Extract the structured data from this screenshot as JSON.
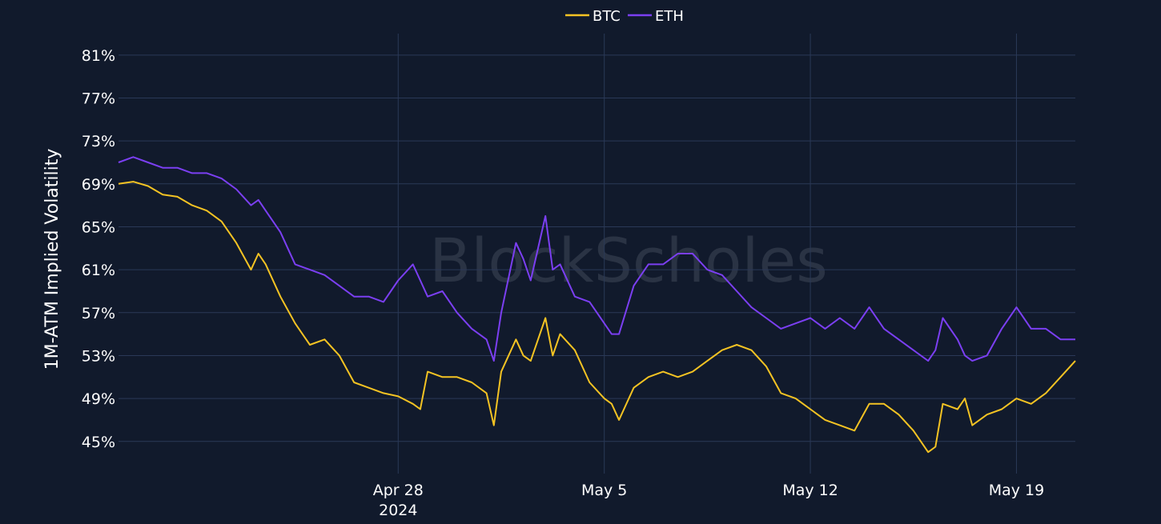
{
  "colors": {
    "background": "#111a2c",
    "grid": "#2a3957",
    "btc": "#f4c323",
    "eth": "#7b3ff2",
    "watermark": "#2a3344"
  },
  "watermark": "BlockScholes",
  "chart_data": {
    "type": "line",
    "title": "",
    "ylabel": "1M-ATM Implied Volatility",
    "xlabel": "",
    "ylim": [
      42,
      83
    ],
    "y_ticks": [
      45,
      49,
      53,
      57,
      61,
      65,
      69,
      73,
      77,
      81
    ],
    "y_tick_labels": [
      "45%",
      "49%",
      "53%",
      "57%",
      "61%",
      "65%",
      "69%",
      "73%",
      "77%",
      "81%"
    ],
    "xlim": [
      "2024-04-18 12:00",
      "2024-05-21 00:00"
    ],
    "x_ticks": [
      "2024-04-28",
      "2024-05-05",
      "2024-05-12",
      "2024-05-19"
    ],
    "x_tick_labels": [
      "Apr 28",
      "May 5",
      "May 12",
      "May 19"
    ],
    "x_year_label": "2024",
    "grid": true,
    "legend": "top-center",
    "series": [
      {
        "name": "BTC",
        "color": "#f4c323",
        "points": [
          [
            "2024-04-18 12:00",
            69.0
          ],
          [
            "2024-04-19 00:00",
            69.2
          ],
          [
            "2024-04-19 12:00",
            68.8
          ],
          [
            "2024-04-20 00:00",
            68.0
          ],
          [
            "2024-04-20 12:00",
            67.8
          ],
          [
            "2024-04-21 00:00",
            67.0
          ],
          [
            "2024-04-21 12:00",
            66.5
          ],
          [
            "2024-04-22 00:00",
            65.5
          ],
          [
            "2024-04-22 12:00",
            63.5
          ],
          [
            "2024-04-23 00:00",
            61.0
          ],
          [
            "2024-04-23 06:00",
            62.5
          ],
          [
            "2024-04-23 12:00",
            61.5
          ],
          [
            "2024-04-24 00:00",
            58.5
          ],
          [
            "2024-04-24 12:00",
            56.0
          ],
          [
            "2024-04-25 00:00",
            54.0
          ],
          [
            "2024-04-25 12:00",
            54.5
          ],
          [
            "2024-04-26 00:00",
            53.0
          ],
          [
            "2024-04-26 12:00",
            50.5
          ],
          [
            "2024-04-27 00:00",
            50.0
          ],
          [
            "2024-04-27 12:00",
            49.5
          ],
          [
            "2024-04-28 00:00",
            49.2
          ],
          [
            "2024-04-28 12:00",
            48.5
          ],
          [
            "2024-04-28 18:00",
            48.0
          ],
          [
            "2024-04-29 00:00",
            51.5
          ],
          [
            "2024-04-29 12:00",
            51.0
          ],
          [
            "2024-04-30 00:00",
            51.0
          ],
          [
            "2024-04-30 12:00",
            50.5
          ],
          [
            "2024-05-01 00:00",
            49.5
          ],
          [
            "2024-05-01 06:00",
            46.5
          ],
          [
            "2024-05-01 12:00",
            51.5
          ],
          [
            "2024-05-02 00:00",
            54.5
          ],
          [
            "2024-05-02 06:00",
            53.0
          ],
          [
            "2024-05-02 12:00",
            52.5
          ],
          [
            "2024-05-03 00:00",
            56.5
          ],
          [
            "2024-05-03 06:00",
            53.0
          ],
          [
            "2024-05-03 12:00",
            55.0
          ],
          [
            "2024-05-04 00:00",
            53.5
          ],
          [
            "2024-05-04 12:00",
            50.5
          ],
          [
            "2024-05-05 00:00",
            49.0
          ],
          [
            "2024-05-05 06:00",
            48.5
          ],
          [
            "2024-05-05 12:00",
            47.0
          ],
          [
            "2024-05-06 00:00",
            50.0
          ],
          [
            "2024-05-06 12:00",
            51.0
          ],
          [
            "2024-05-07 00:00",
            51.5
          ],
          [
            "2024-05-07 12:00",
            51.0
          ],
          [
            "2024-05-08 00:00",
            51.5
          ],
          [
            "2024-05-08 12:00",
            52.5
          ],
          [
            "2024-05-09 00:00",
            53.5
          ],
          [
            "2024-05-09 12:00",
            54.0
          ],
          [
            "2024-05-10 00:00",
            53.5
          ],
          [
            "2024-05-10 12:00",
            52.0
          ],
          [
            "2024-05-11 00:00",
            49.5
          ],
          [
            "2024-05-11 12:00",
            49.0
          ],
          [
            "2024-05-12 00:00",
            48.0
          ],
          [
            "2024-05-12 12:00",
            47.0
          ],
          [
            "2024-05-13 00:00",
            46.5
          ],
          [
            "2024-05-13 12:00",
            46.0
          ],
          [
            "2024-05-14 00:00",
            48.5
          ],
          [
            "2024-05-14 12:00",
            48.5
          ],
          [
            "2024-05-15 00:00",
            47.5
          ],
          [
            "2024-05-15 12:00",
            46.0
          ],
          [
            "2024-05-16 00:00",
            44.0
          ],
          [
            "2024-05-16 06:00",
            44.5
          ],
          [
            "2024-05-16 12:00",
            48.5
          ],
          [
            "2024-05-17 00:00",
            48.0
          ],
          [
            "2024-05-17 06:00",
            49.0
          ],
          [
            "2024-05-17 12:00",
            46.5
          ],
          [
            "2024-05-18 00:00",
            47.5
          ],
          [
            "2024-05-18 12:00",
            48.0
          ],
          [
            "2024-05-19 00:00",
            49.0
          ],
          [
            "2024-05-19 12:00",
            48.5
          ],
          [
            "2024-05-20 00:00",
            49.5
          ],
          [
            "2024-05-20 12:00",
            51.0
          ],
          [
            "2024-05-21 00:00",
            52.5
          ]
        ]
      },
      {
        "name": "ETH",
        "color": "#7b3ff2",
        "points": [
          [
            "2024-04-18 12:00",
            71.0
          ],
          [
            "2024-04-19 00:00",
            71.5
          ],
          [
            "2024-04-19 12:00",
            71.0
          ],
          [
            "2024-04-20 00:00",
            70.5
          ],
          [
            "2024-04-20 12:00",
            70.5
          ],
          [
            "2024-04-21 00:00",
            70.0
          ],
          [
            "2024-04-21 12:00",
            70.0
          ],
          [
            "2024-04-22 00:00",
            69.5
          ],
          [
            "2024-04-22 12:00",
            68.5
          ],
          [
            "2024-04-23 00:00",
            67.0
          ],
          [
            "2024-04-23 06:00",
            67.5
          ],
          [
            "2024-04-23 12:00",
            66.5
          ],
          [
            "2024-04-24 00:00",
            64.5
          ],
          [
            "2024-04-24 12:00",
            61.5
          ],
          [
            "2024-04-25 00:00",
            61.0
          ],
          [
            "2024-04-25 12:00",
            60.5
          ],
          [
            "2024-04-26 00:00",
            59.5
          ],
          [
            "2024-04-26 12:00",
            58.5
          ],
          [
            "2024-04-27 00:00",
            58.5
          ],
          [
            "2024-04-27 12:00",
            58.0
          ],
          [
            "2024-04-28 00:00",
            60.0
          ],
          [
            "2024-04-28 12:00",
            61.5
          ],
          [
            "2024-04-28 18:00",
            60.0
          ],
          [
            "2024-04-29 00:00",
            58.5
          ],
          [
            "2024-04-29 12:00",
            59.0
          ],
          [
            "2024-04-30 00:00",
            57.0
          ],
          [
            "2024-04-30 12:00",
            55.5
          ],
          [
            "2024-05-01 00:00",
            54.5
          ],
          [
            "2024-05-01 06:00",
            52.5
          ],
          [
            "2024-05-01 12:00",
            57.0
          ],
          [
            "2024-05-02 00:00",
            63.5
          ],
          [
            "2024-05-02 06:00",
            62.0
          ],
          [
            "2024-05-02 12:00",
            60.0
          ],
          [
            "2024-05-03 00:00",
            66.0
          ],
          [
            "2024-05-03 06:00",
            61.0
          ],
          [
            "2024-05-03 12:00",
            61.5
          ],
          [
            "2024-05-04 00:00",
            58.5
          ],
          [
            "2024-05-04 12:00",
            58.0
          ],
          [
            "2024-05-05 00:00",
            56.0
          ],
          [
            "2024-05-05 06:00",
            55.0
          ],
          [
            "2024-05-05 12:00",
            55.0
          ],
          [
            "2024-05-06 00:00",
            59.5
          ],
          [
            "2024-05-06 12:00",
            61.5
          ],
          [
            "2024-05-07 00:00",
            61.5
          ],
          [
            "2024-05-07 12:00",
            62.5
          ],
          [
            "2024-05-08 00:00",
            62.5
          ],
          [
            "2024-05-08 12:00",
            61.0
          ],
          [
            "2024-05-09 00:00",
            60.5
          ],
          [
            "2024-05-09 12:00",
            59.0
          ],
          [
            "2024-05-10 00:00",
            57.5
          ],
          [
            "2024-05-10 12:00",
            56.5
          ],
          [
            "2024-05-11 00:00",
            55.5
          ],
          [
            "2024-05-11 12:00",
            56.0
          ],
          [
            "2024-05-12 00:00",
            56.5
          ],
          [
            "2024-05-12 12:00",
            55.5
          ],
          [
            "2024-05-13 00:00",
            56.5
          ],
          [
            "2024-05-13 12:00",
            55.5
          ],
          [
            "2024-05-14 00:00",
            57.5
          ],
          [
            "2024-05-14 12:00",
            55.5
          ],
          [
            "2024-05-15 00:00",
            54.5
          ],
          [
            "2024-05-15 12:00",
            53.5
          ],
          [
            "2024-05-16 00:00",
            52.5
          ],
          [
            "2024-05-16 06:00",
            53.5
          ],
          [
            "2024-05-16 12:00",
            56.5
          ],
          [
            "2024-05-17 00:00",
            54.5
          ],
          [
            "2024-05-17 06:00",
            53.0
          ],
          [
            "2024-05-17 12:00",
            52.5
          ],
          [
            "2024-05-18 00:00",
            53.0
          ],
          [
            "2024-05-18 12:00",
            55.5
          ],
          [
            "2024-05-19 00:00",
            57.5
          ],
          [
            "2024-05-19 12:00",
            55.5
          ],
          [
            "2024-05-20 00:00",
            55.5
          ],
          [
            "2024-05-20 12:00",
            54.5
          ],
          [
            "2024-05-21 00:00",
            54.5
          ]
        ]
      }
    ]
  }
}
